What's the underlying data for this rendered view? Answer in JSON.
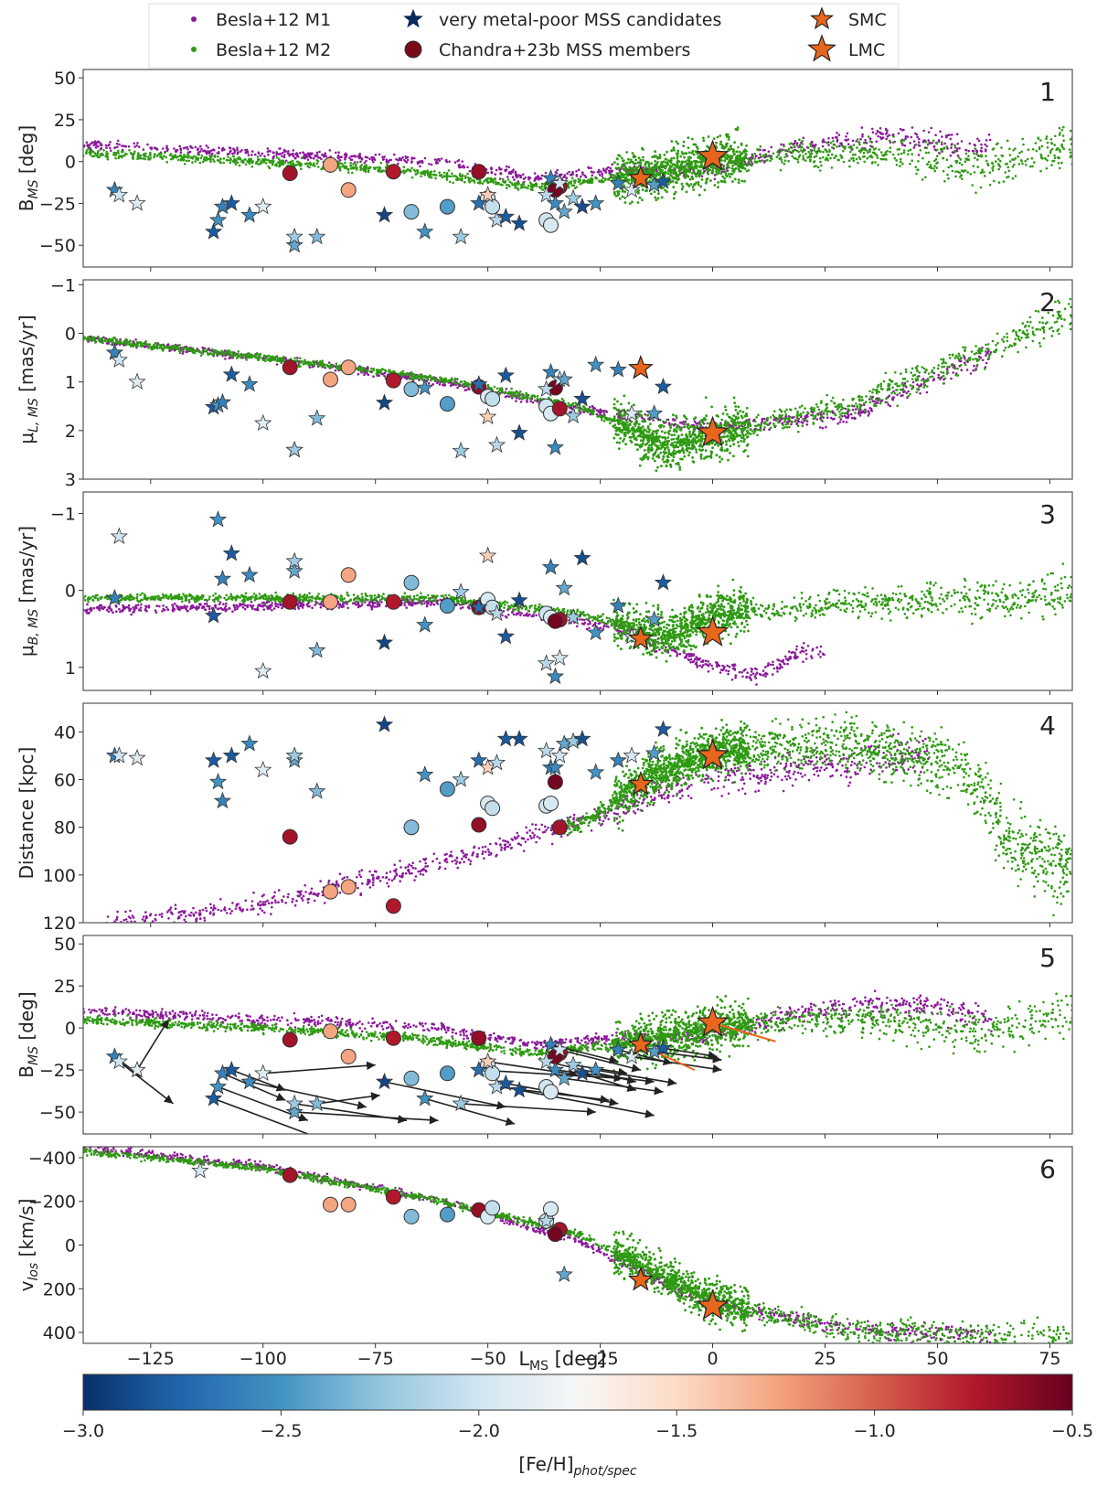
{
  "legend": {
    "m1": "Besla+12 M1",
    "m2": "Besla+12 M2",
    "vmp": "very metal-poor MSS candidates",
    "chandra": "Chandra+23b MSS members",
    "smc": "SMC",
    "lmc": "LMC"
  },
  "colors": {
    "m1": "#8b1a9a",
    "m2": "#2e9a12",
    "lmc_star": "#e8661c",
    "arrow": "#222222",
    "frame": "#555555"
  },
  "chart_data": {
    "type": "scatter",
    "xlabel": "L",
    "xlabel_sub": "MS",
    "xlabel_unit": " [deg]",
    "xlim": [
      -140,
      80
    ],
    "xticks": [
      -125,
      -100,
      -75,
      -50,
      -25,
      0,
      25,
      50,
      75
    ],
    "colorbar": {
      "label": "[Fe/H]",
      "label_sub": "phot/spec",
      "range": [
        -3.0,
        -0.5
      ],
      "ticks": [
        "-3.0",
        "-2.5",
        "-2.0",
        "-1.5",
        "-1.0",
        "-0.5"
      ],
      "stops": [
        "#08306b",
        "#2166ac",
        "#4393c3",
        "#92c5de",
        "#d1e5f0",
        "#f7f7f7",
        "#fddbc7",
        "#f4a582",
        "#d6604d",
        "#b2182b",
        "#67001f"
      ]
    },
    "panels": [
      {
        "id": "1",
        "number": "1",
        "ylabel": "B",
        "ylabel_sub": "MS",
        "ylabel_unit": " [deg]",
        "ylim": [
          55,
          -63
        ],
        "yticks": [
          -50,
          -25,
          0,
          25,
          50
        ],
        "ytick_labels": [
          "−50",
          "−25",
          "0",
          "25",
          "50"
        ],
        "key": "B"
      },
      {
        "id": "2",
        "number": "2",
        "ylabel": "μ",
        "ylabel_sub": "L, MS",
        "ylabel_unit": " [mas/yr]",
        "ylim": [
          -1.1,
          3.0
        ],
        "yticks": [
          -1,
          0,
          1,
          2,
          3
        ],
        "ytick_labels": [
          "−1",
          "0",
          "1",
          "2",
          "3"
        ],
        "key": "muL"
      },
      {
        "id": "3",
        "number": "3",
        "ylabel": "μ",
        "ylabel_sub": "B, MS",
        "ylabel_unit": " [mas/yr]",
        "ylim": [
          -1.28,
          1.3
        ],
        "yticks": [
          -1,
          0,
          1
        ],
        "ytick_labels": [
          "−1",
          "0",
          "1"
        ],
        "key": "muB"
      },
      {
        "id": "4",
        "number": "4",
        "ylabel": "Distance",
        "ylabel_sub": "",
        "ylabel_unit": " [kpc]",
        "ylim": [
          28,
          120
        ],
        "yticks": [
          40,
          60,
          80,
          100,
          120
        ],
        "ytick_labels": [
          "40",
          "60",
          "80",
          "100",
          "120"
        ],
        "key": "D"
      },
      {
        "id": "5",
        "number": "5",
        "ylabel": "B",
        "ylabel_sub": "MS",
        "ylabel_unit": " [deg]",
        "ylim": [
          55,
          -63
        ],
        "yticks": [
          -50,
          -25,
          0,
          25,
          50
        ],
        "ytick_labels": [
          "−50",
          "−25",
          "0",
          "25",
          "50"
        ],
        "key": "B",
        "arrows": true
      },
      {
        "id": "6",
        "number": "6",
        "ylabel": "v",
        "ylabel_sub": "los",
        "ylabel_unit": " [km/s]",
        "ylim": [
          -450,
          450
        ],
        "yticks": [
          -400,
          -200,
          0,
          200,
          400
        ],
        "ytick_labels": [
          "−400",
          "−200",
          "0",
          "200",
          "400"
        ],
        "key": "v"
      }
    ],
    "m2_model": {
      "B": [
        [
          -140,
          5
        ],
        [
          -100,
          0
        ],
        [
          -70,
          -5
        ],
        [
          -40,
          -15
        ],
        [
          -20,
          -10
        ],
        [
          0,
          0
        ],
        [
          20,
          5
        ],
        [
          40,
          5
        ],
        [
          60,
          -3
        ],
        [
          80,
          10
        ]
      ],
      "muL": [
        [
          -140,
          0.1
        ],
        [
          -100,
          0.5
        ],
        [
          -60,
          0.95
        ],
        [
          -30,
          1.5
        ],
        [
          -10,
          2.3
        ],
        [
          0,
          2.1
        ],
        [
          30,
          1.5
        ],
        [
          60,
          0.4
        ],
        [
          80,
          -0.4
        ]
      ],
      "muB": [
        [
          -140,
          0.1
        ],
        [
          -60,
          0.1
        ],
        [
          -30,
          0.3
        ],
        [
          -10,
          0.6
        ],
        [
          0,
          0.3
        ],
        [
          40,
          0.15
        ],
        [
          80,
          0.05
        ]
      ],
      "D": [
        [
          -30,
          80
        ],
        [
          -15,
          60
        ],
        [
          0,
          48
        ],
        [
          30,
          45
        ],
        [
          55,
          55
        ],
        [
          62,
          70
        ],
        [
          65,
          85
        ],
        [
          75,
          95
        ]
      ],
      "v": [
        [
          -140,
          -430
        ],
        [
          -100,
          -350
        ],
        [
          -60,
          -200
        ],
        [
          -30,
          -50
        ],
        [
          -10,
          150
        ],
        [
          0,
          260
        ],
        [
          30,
          390
        ],
        [
          80,
          440
        ]
      ]
    },
    "m1_model": {
      "B": [
        [
          -140,
          10
        ],
        [
          -100,
          5
        ],
        [
          -60,
          0
        ],
        [
          -40,
          -10
        ],
        [
          -20,
          -5
        ],
        [
          0,
          -5
        ],
        [
          20,
          10
        ],
        [
          40,
          15
        ],
        [
          60,
          8
        ]
      ],
      "muL": [
        [
          -140,
          0.1
        ],
        [
          -100,
          0.5
        ],
        [
          -60,
          1.0
        ],
        [
          -30,
          1.55
        ],
        [
          0,
          1.95
        ],
        [
          30,
          1.7
        ],
        [
          60,
          0.5
        ]
      ],
      "muB": [
        [
          -140,
          0.25
        ],
        [
          -60,
          0.15
        ],
        [
          -20,
          0.5
        ],
        [
          0,
          1.0
        ],
        [
          10,
          1.1
        ],
        [
          20,
          0.8
        ]
      ],
      "D": [
        [
          -130,
          120
        ],
        [
          -100,
          112
        ],
        [
          -60,
          95
        ],
        [
          -30,
          78
        ],
        [
          -10,
          65
        ],
        [
          0,
          60
        ],
        [
          20,
          55
        ],
        [
          45,
          50
        ]
      ],
      "v": [
        [
          -140,
          -450
        ],
        [
          -100,
          -360
        ],
        [
          -60,
          -200
        ],
        [
          -30,
          -20
        ],
        [
          -10,
          180
        ],
        [
          0,
          270
        ],
        [
          30,
          380
        ],
        [
          70,
          420
        ]
      ]
    },
    "lmc": {
      "L": 0,
      "B": 3,
      "muL": 2.05,
      "muB": 0.55,
      "D": 50,
      "v": 280
    },
    "smc": {
      "L": -16,
      "B": -10,
      "muL": 0.72,
      "muB": 0.63,
      "D": 62,
      "v": 160
    },
    "chandra_members": [
      {
        "L": -94,
        "B": -7,
        "muL": 0.7,
        "muB": 0.15,
        "D": 84,
        "v": -320,
        "feh": -0.7
      },
      {
        "L": -85,
        "B": -2,
        "muL": 0.95,
        "muB": 0.15,
        "D": 107,
        "v": -185,
        "feh": -1.25
      },
      {
        "L": -81,
        "B": -17,
        "muL": 0.7,
        "muB": -0.2,
        "D": 105,
        "v": -185,
        "feh": -1.25
      },
      {
        "L": -71,
        "B": -6,
        "muL": 0.97,
        "muB": 0.15,
        "D": 113,
        "v": -220,
        "feh": -0.75
      },
      {
        "L": -67,
        "B": -30,
        "muL": 1.15,
        "muB": -0.1,
        "D": 80,
        "v": -130,
        "feh": -2.3
      },
      {
        "L": -59,
        "B": -27,
        "muL": 1.45,
        "muB": 0.2,
        "D": 64,
        "v": -140,
        "feh": -2.45
      },
      {
        "L": -52,
        "B": -6,
        "muL": 1.1,
        "muB": 0.22,
        "D": 79,
        "v": -160,
        "feh": -0.65
      },
      {
        "L": -50,
        "B": -22,
        "muL": 1.3,
        "muB": 0.12,
        "D": 70,
        "v": -130,
        "feh": -1.95
      },
      {
        "L": -49,
        "B": -27,
        "muL": 1.35,
        "muB": 0.22,
        "D": 72,
        "v": -170,
        "feh": -2.05
      },
      {
        "L": -37,
        "B": -35,
        "muL": 1.5,
        "muB": 0.3,
        "D": 71,
        "v": -110,
        "feh": -2.0
      },
      {
        "L": -36,
        "B": -38,
        "muL": 1.65,
        "muB": 0.35,
        "D": 70,
        "v": -165,
        "feh": -1.95
      },
      {
        "L": -34,
        "B": -15,
        "muL": 1.55,
        "muB": 0.38,
        "D": 80,
        "v": -70,
        "feh": -0.7
      },
      {
        "L": -35,
        "B": -17,
        "muL": 1.12,
        "muB": 0.4,
        "D": 61,
        "v": -50,
        "feh": -0.55
      }
    ],
    "vmp_candidates": [
      {
        "L": -133,
        "B": -17,
        "muL": 0.4,
        "muB": 0.1,
        "D": 50,
        "v": null,
        "feh": -2.6,
        "dL": 6,
        "dB": 12
      },
      {
        "L": -132,
        "B": -20,
        "muL": 0.55,
        "muB": -0.7,
        "D": 50,
        "v": null,
        "feh": -2.0,
        "dL": 12,
        "dB": 25
      },
      {
        "L": -128,
        "B": -25,
        "muL": 1.0,
        "muB": null,
        "D": 51,
        "v": null,
        "feh": -1.9,
        "dL": 7,
        "dB": -30
      },
      {
        "L": -111,
        "B": -42,
        "muL": 1.52,
        "muB": 0.33,
        "D": 52,
        "v": null,
        "feh": -2.8,
        "dL": 25,
        "dB": 25
      },
      {
        "L": -110,
        "B": -35,
        "muL": 1.48,
        "muB": -0.92,
        "D": 61,
        "v": null,
        "feh": -2.5,
        "dL": 20,
        "dB": 20
      },
      {
        "L": -109,
        "B": -27,
        "muL": 1.42,
        "muB": -0.15,
        "D": 69,
        "v": null,
        "feh": -2.6,
        "dL": 14,
        "dB": 16
      },
      {
        "L": -107,
        "B": -25,
        "muL": 0.85,
        "muB": -0.48,
        "D": 50,
        "v": null,
        "feh": -2.8,
        "dL": 12,
        "dB": 12
      },
      {
        "L": -103,
        "B": -32,
        "muL": 1.05,
        "muB": -0.2,
        "D": 45,
        "v": null,
        "feh": -2.55,
        "dL": 26,
        "dB": 15
      },
      {
        "L": -100,
        "B": -27,
        "muL": 1.85,
        "muB": 1.05,
        "D": 56,
        "v": null,
        "feh": -1.9,
        "dL": 25,
        "dB": -5
      },
      {
        "L": -93,
        "B": -50,
        "muL": 2.4,
        "muB": -0.25,
        "D": 52,
        "v": null,
        "feh": -2.4,
        "dL": 32,
        "dB": 5
      },
      {
        "L": -93,
        "B": -45,
        "muL": 2.4,
        "muB": -0.38,
        "D": 50,
        "v": null,
        "feh": -2.2,
        "dL": 25,
        "dB": 10
      },
      {
        "L": -88,
        "B": -45,
        "muL": 1.75,
        "muB": 0.78,
        "D": 65,
        "v": null,
        "feh": -2.3,
        "dL": 14,
        "dB": -5
      },
      {
        "L": -73,
        "B": -32,
        "muL": 1.43,
        "muB": 0.68,
        "D": 37,
        "v": null,
        "feh": -2.9,
        "dL": 27,
        "dB": 15
      },
      {
        "L": -64,
        "B": -42,
        "muL": 1.12,
        "muB": 0.45,
        "D": 58,
        "v": null,
        "feh": -2.5,
        "dL": 20,
        "dB": 15
      },
      {
        "L": -56,
        "B": -45,
        "muL": 2.42,
        "muB": 0.02,
        "D": 60,
        "v": null,
        "feh": -2.2,
        "dL": 30,
        "dB": 5
      },
      {
        "L": -52,
        "B": -25,
        "muL": 1.05,
        "muB": 0.22,
        "D": 52,
        "v": null,
        "feh": -2.7,
        "dL": 32,
        "dB": 5
      },
      {
        "L": -50,
        "B": -20,
        "muL": 1.72,
        "muB": -0.45,
        "D": 55,
        "v": null,
        "feh": -1.45,
        "dL": 20,
        "dB": 8
      },
      {
        "L": -48,
        "B": -35,
        "muL": 2.3,
        "muB": 0.3,
        "D": 53,
        "v": null,
        "feh": -2.1,
        "dL": 25,
        "dB": 8
      },
      {
        "L": -46,
        "B": -33,
        "muL": 0.87,
        "muB": 0.6,
        "D": 43,
        "v": null,
        "feh": -2.8,
        "dL": 25,
        "dB": 12
      },
      {
        "L": -43,
        "B": -37,
        "muL": 2.05,
        "muB": 0.13,
        "D": 43,
        "v": null,
        "feh": -2.85,
        "dL": 30,
        "dB": 15
      },
      {
        "L": -37,
        "B": -20,
        "muL": 1.15,
        "muB": 0.95,
        "D": 48,
        "v": -110,
        "feh": -2.1,
        "dL": 20,
        "dB": 12
      },
      {
        "L": -36,
        "B": -10,
        "muL": 0.8,
        "muB": -0.3,
        "D": 55,
        "v": null,
        "feh": -2.6,
        "dL": 15,
        "dB": 10
      },
      {
        "L": -35,
        "B": -25,
        "muL": 2.35,
        "muB": 1.12,
        "D": 55,
        "v": null,
        "feh": -2.55,
        "dL": 22,
        "dB": 7
      },
      {
        "L": -34,
        "B": -13,
        "muL": 0.95,
        "muB": 0.88,
        "D": 50,
        "v": null,
        "feh": -2.0,
        "dL": 18,
        "dB": 12
      },
      {
        "L": -33,
        "B": -30,
        "muL": 0.95,
        "muB": -0.03,
        "D": 45,
        "v": 135,
        "feh": -2.4,
        "dL": 22,
        "dB": 8
      },
      {
        "L": -31,
        "B": -22,
        "muL": 1.7,
        "muB": 0.35,
        "D": 44,
        "v": null,
        "feh": -2.2,
        "dL": 12,
        "dB": 5
      },
      {
        "L": -29,
        "B": -27,
        "muL": 1.35,
        "muB": -0.42,
        "D": 43,
        "v": null,
        "feh": -2.85,
        "dL": 12,
        "dB": 10
      },
      {
        "L": -26,
        "B": -25,
        "muL": 0.65,
        "muB": 0.55,
        "D": 57,
        "v": null,
        "feh": -2.5,
        "dL": 18,
        "dB": 8
      },
      {
        "L": -21,
        "B": -13,
        "muL": 0.75,
        "muB": 0.2,
        "D": 52,
        "v": null,
        "feh": -2.6,
        "dL": 12,
        "dB": 8
      },
      {
        "L": -18,
        "B": -17,
        "muL": 1.65,
        "muB": 0.6,
        "D": 50,
        "v": null,
        "feh": -1.95,
        "dL": 20,
        "dB": 8
      },
      {
        "L": -13,
        "B": -14,
        "muL": 1.65,
        "muB": 0.38,
        "D": 49,
        "v": null,
        "feh": -2.45,
        "dL": 15,
        "dB": 5
      },
      {
        "L": -11,
        "B": -12,
        "muL": 1.1,
        "muB": -0.1,
        "D": 39,
        "v": null,
        "feh": -2.8,
        "dL": 12,
        "dB": 5
      },
      {
        "L": -114,
        "B": null,
        "muL": null,
        "muB": null,
        "D": null,
        "v": -340,
        "feh": -1.95,
        "dL": 0,
        "dB": 0
      }
    ]
  }
}
